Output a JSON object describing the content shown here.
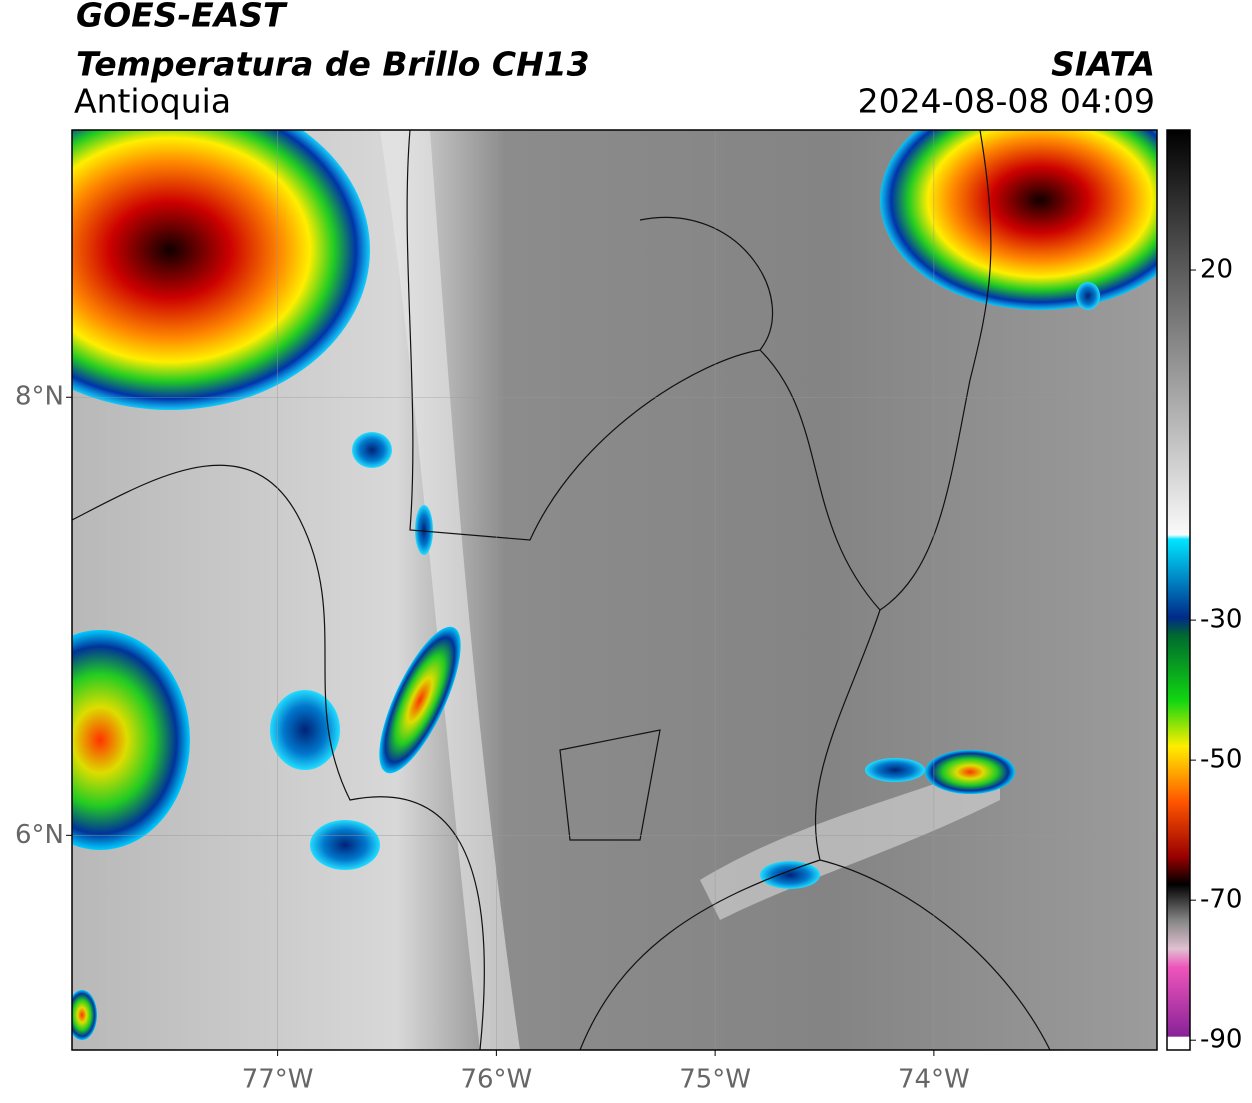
{
  "header": {
    "satellite": "GOES-EAST",
    "product": "Temperatura de Brillo CH13",
    "region": "Antioquia",
    "source": "SIATA",
    "datetime": "2024-08-08 04:09"
  },
  "map": {
    "xlim": [
      -77.94,
      -72.98
    ],
    "ylim": [
      5.02,
      9.22
    ],
    "xticks": [
      {
        "value": -77,
        "label": "77°W"
      },
      {
        "value": -76,
        "label": "76°W"
      },
      {
        "value": -75,
        "label": "75°W"
      },
      {
        "value": -74,
        "label": "74°W"
      }
    ],
    "yticks": [
      {
        "value": 8,
        "label": "8°N"
      },
      {
        "value": 6,
        "label": "6°N"
      }
    ],
    "grid": true
  },
  "colorbar": {
    "lim": [
      -91.4,
      40
    ],
    "ticks": [
      20,
      -30,
      -50,
      -70,
      -90
    ]
  }
}
